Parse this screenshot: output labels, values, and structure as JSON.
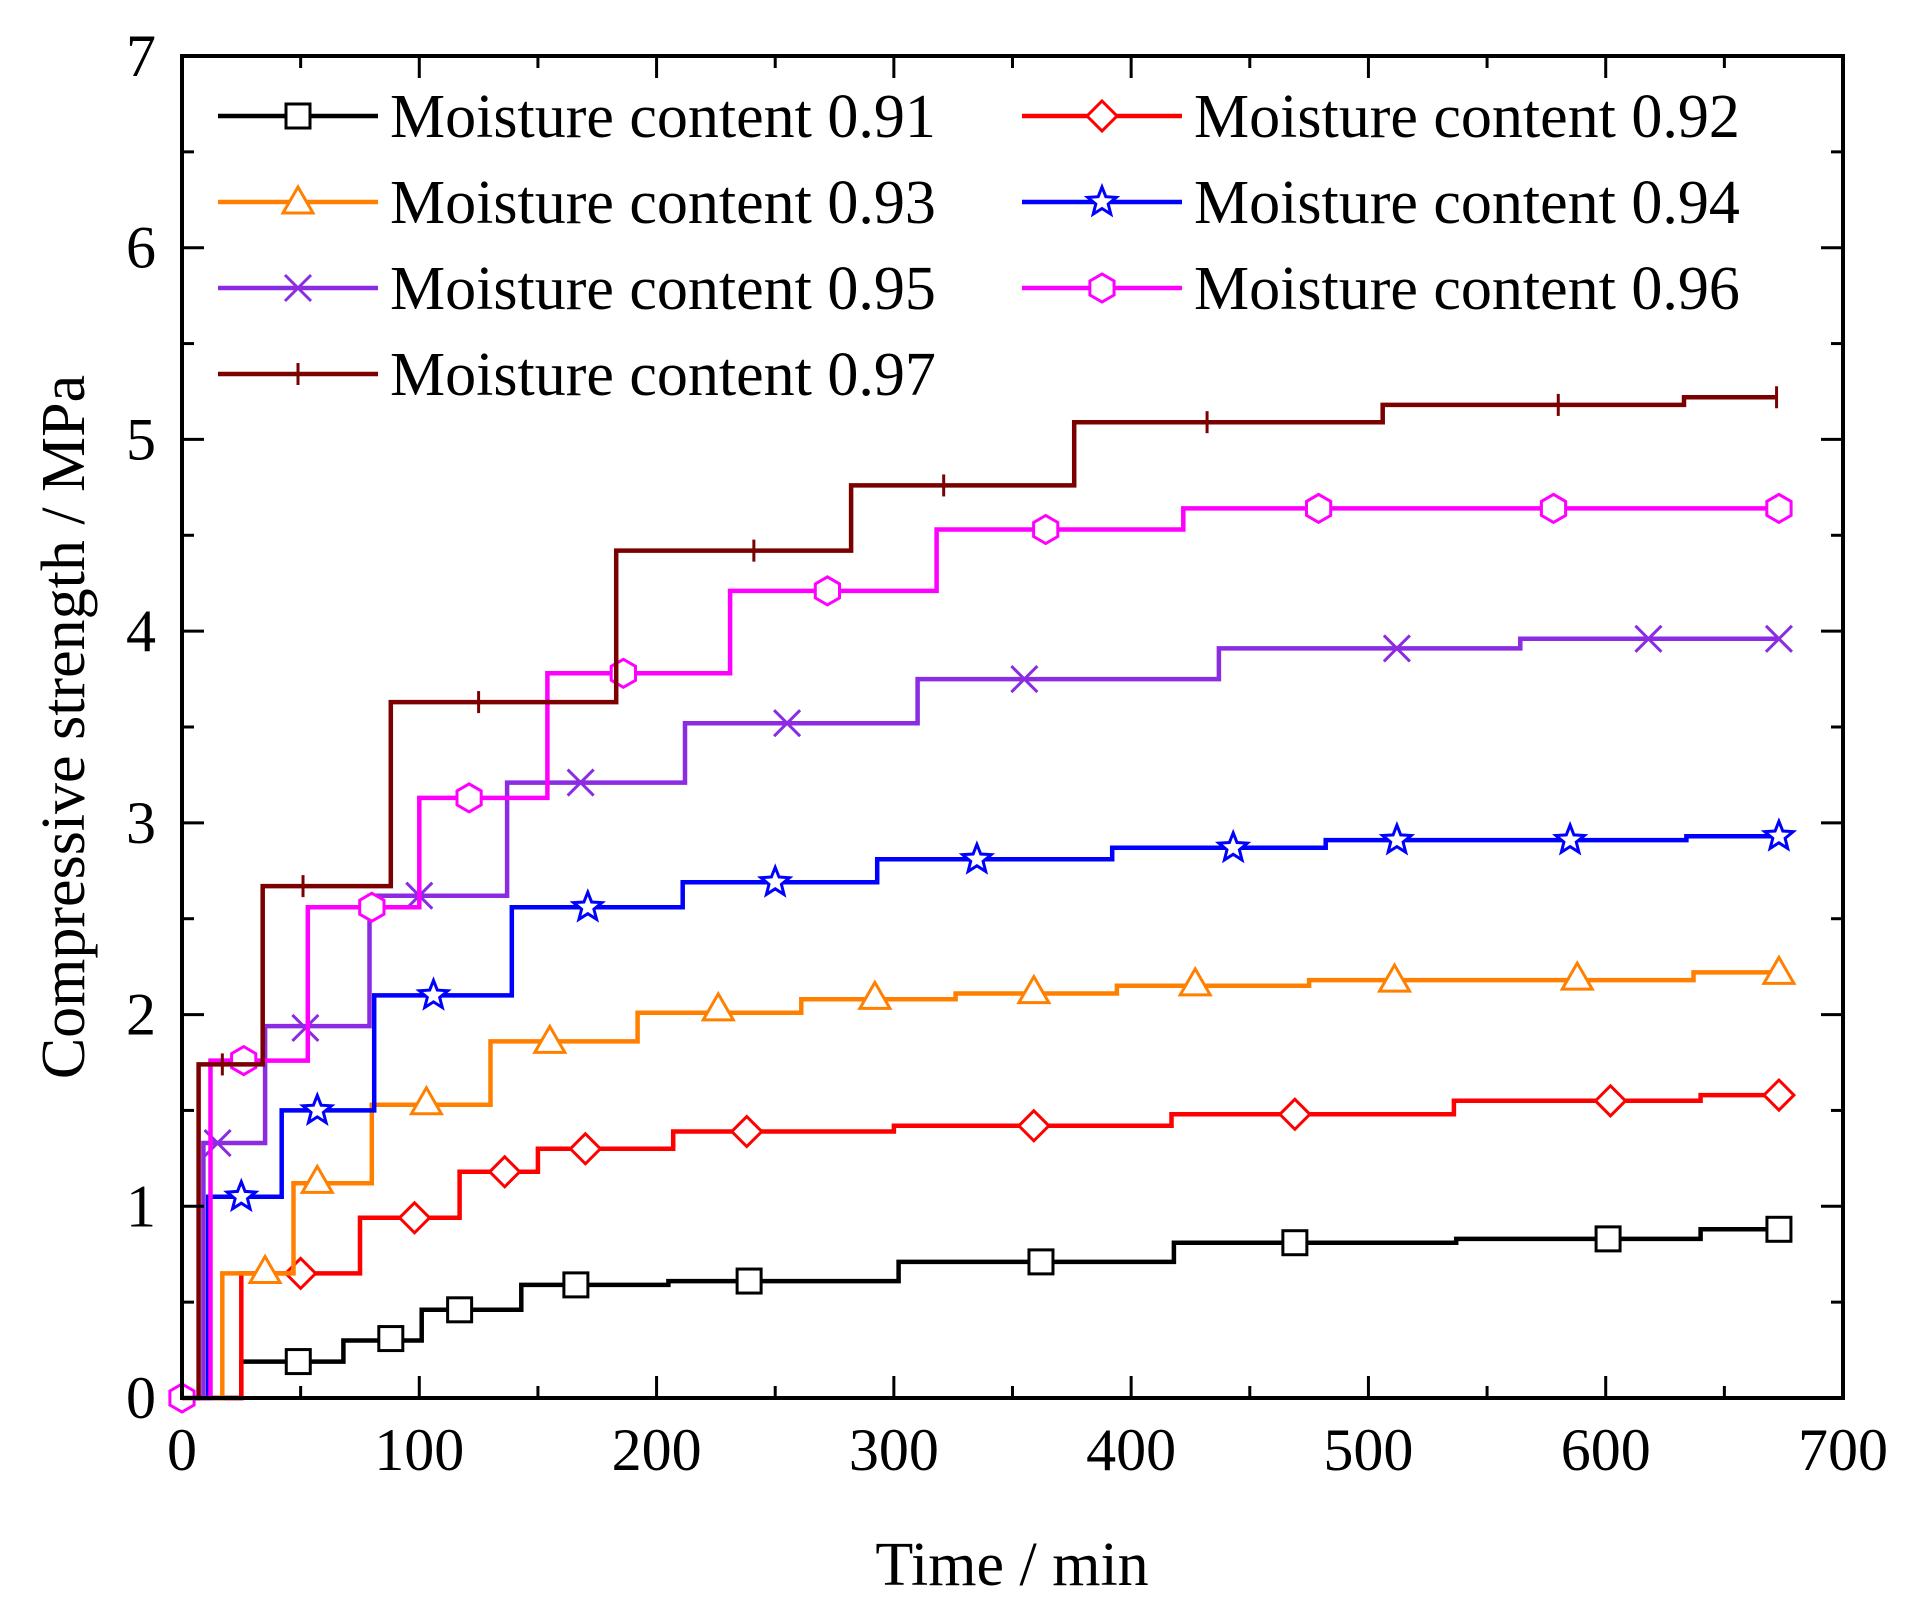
{
  "chart_data": {
    "type": "line",
    "step": true,
    "title": "",
    "xlabel": "Time / min",
    "ylabel": "Compressive strength / MPa",
    "xlim": [
      0,
      700
    ],
    "ylim": [
      0,
      7
    ],
    "xticks": [
      0,
      100,
      200,
      300,
      400,
      500,
      600,
      700
    ],
    "yticks": [
      0,
      1,
      2,
      3,
      4,
      5,
      6,
      7
    ],
    "legend_position": "top-left",
    "series": [
      {
        "name": "Moisture content 0.91",
        "color": "#000000",
        "marker": "square",
        "steps": [
          [
            0,
            0
          ],
          [
            23,
            0
          ],
          [
            25,
            0.19
          ],
          [
            67,
            0.19
          ],
          [
            68,
            0.3
          ],
          [
            98,
            0.3
          ],
          [
            101,
            0.46
          ],
          [
            141,
            0.46
          ],
          [
            143,
            0.59
          ],
          [
            200,
            0.59
          ],
          [
            205,
            0.61
          ],
          [
            300,
            0.61
          ],
          [
            302,
            0.71
          ],
          [
            416,
            0.71
          ],
          [
            418,
            0.81
          ],
          [
            535,
            0.81
          ],
          [
            537,
            0.83
          ],
          [
            638,
            0.83
          ],
          [
            640,
            0.88
          ],
          [
            673,
            0.88
          ]
        ],
        "markers": [
          [
            49,
            0.19
          ],
          [
            88,
            0.31
          ],
          [
            117,
            0.46
          ],
          [
            166,
            0.59
          ],
          [
            239,
            0.61
          ],
          [
            362,
            0.71
          ],
          [
            469,
            0.81
          ],
          [
            601,
            0.83
          ],
          [
            673,
            0.88
          ]
        ]
      },
      {
        "name": "Moisture content 0.92",
        "color": "#ff0000",
        "marker": "diamond",
        "steps": [
          [
            0,
            0
          ],
          [
            24,
            0
          ],
          [
            25,
            0.65
          ],
          [
            73,
            0.65
          ],
          [
            75,
            0.94
          ],
          [
            115,
            0.94
          ],
          [
            117,
            1.18
          ],
          [
            145,
            1.18
          ],
          [
            150,
            1.3
          ],
          [
            205,
            1.3
          ],
          [
            207,
            1.39
          ],
          [
            298,
            1.39
          ],
          [
            300,
            1.42
          ],
          [
            415,
            1.42
          ],
          [
            417,
            1.48
          ],
          [
            534,
            1.48
          ],
          [
            536,
            1.55
          ],
          [
            638,
            1.55
          ],
          [
            640,
            1.58
          ],
          [
            673,
            1.58
          ]
        ],
        "markers": [
          [
            50,
            0.65
          ],
          [
            98,
            0.94
          ],
          [
            136,
            1.18
          ],
          [
            170,
            1.3
          ],
          [
            238,
            1.39
          ],
          [
            359,
            1.42
          ],
          [
            469,
            1.48
          ],
          [
            602,
            1.55
          ],
          [
            673,
            1.58
          ]
        ]
      },
      {
        "name": "Moisture content 0.93",
        "color": "#ff8000",
        "marker": "triangle",
        "steps": [
          [
            0,
            0
          ],
          [
            15,
            0
          ],
          [
            17,
            0.65
          ],
          [
            45,
            0.65
          ],
          [
            47,
            1.12
          ],
          [
            79,
            1.12
          ],
          [
            80,
            1.53
          ],
          [
            128,
            1.53
          ],
          [
            130,
            1.86
          ],
          [
            190,
            1.86
          ],
          [
            192,
            2.01
          ],
          [
            259,
            2.01
          ],
          [
            261,
            2.08
          ],
          [
            324,
            2.08
          ],
          [
            326,
            2.11
          ],
          [
            392,
            2.11
          ],
          [
            394,
            2.15
          ],
          [
            473,
            2.15
          ],
          [
            475,
            2.18
          ],
          [
            635,
            2.18
          ],
          [
            637,
            2.22
          ],
          [
            673,
            2.22
          ]
        ],
        "markers": [
          [
            35,
            0.66
          ],
          [
            57,
            1.13
          ],
          [
            103,
            1.54
          ],
          [
            155,
            1.86
          ],
          [
            226,
            2.03
          ],
          [
            292,
            2.09
          ],
          [
            359,
            2.12
          ],
          [
            427,
            2.16
          ],
          [
            511,
            2.18
          ],
          [
            588,
            2.19
          ],
          [
            673,
            2.22
          ]
        ]
      },
      {
        "name": "Moisture content 0.94",
        "color": "#0000ff",
        "marker": "star",
        "steps": [
          [
            0,
            0
          ],
          [
            10,
            0
          ],
          [
            11,
            1.05
          ],
          [
            41,
            1.05
          ],
          [
            42,
            1.5
          ],
          [
            80,
            1.5
          ],
          [
            81,
            2.1
          ],
          [
            138,
            2.1
          ],
          [
            139,
            2.56
          ],
          [
            210,
            2.56
          ],
          [
            211,
            2.69
          ],
          [
            292,
            2.69
          ],
          [
            293,
            2.81
          ],
          [
            390,
            2.81
          ],
          [
            392,
            2.87
          ],
          [
            480,
            2.87
          ],
          [
            482,
            2.91
          ],
          [
            632,
            2.91
          ],
          [
            634,
            2.93
          ],
          [
            673,
            2.93
          ]
        ],
        "markers": [
          [
            25,
            1.05
          ],
          [
            57,
            1.5
          ],
          [
            106,
            2.1
          ],
          [
            171,
            2.56
          ],
          [
            250,
            2.69
          ],
          [
            335,
            2.81
          ],
          [
            443,
            2.87
          ],
          [
            512,
            2.91
          ],
          [
            585,
            2.91
          ],
          [
            673,
            2.93
          ]
        ]
      },
      {
        "name": "Moisture content 0.95",
        "color": "#8b2be2",
        "marker": "x",
        "steps": [
          [
            0,
            0
          ],
          [
            8,
            0
          ],
          [
            9,
            1.33
          ],
          [
            34,
            1.33
          ],
          [
            35,
            1.94
          ],
          [
            78,
            1.94
          ],
          [
            79,
            2.62
          ],
          [
            136,
            2.62
          ],
          [
            137,
            3.21
          ],
          [
            211,
            3.21
          ],
          [
            212,
            3.52
          ],
          [
            309,
            3.52
          ],
          [
            310,
            3.75
          ],
          [
            436,
            3.75
          ],
          [
            437,
            3.91
          ],
          [
            562,
            3.91
          ],
          [
            564,
            3.96
          ],
          [
            673,
            3.96
          ]
        ],
        "markers": [
          [
            15,
            1.33
          ],
          [
            52,
            1.93
          ],
          [
            100,
            2.62
          ],
          [
            168,
            3.21
          ],
          [
            255,
            3.52
          ],
          [
            355,
            3.75
          ],
          [
            512,
            3.91
          ],
          [
            618,
            3.96
          ],
          [
            673,
            3.96
          ]
        ]
      },
      {
        "name": "Moisture content 0.96",
        "color": "#ff00ff",
        "marker": "hexagon",
        "steps": [
          [
            0,
            0
          ],
          [
            11,
            0
          ],
          [
            12,
            1.76
          ],
          [
            51,
            1.76
          ],
          [
            53,
            2.56
          ],
          [
            99,
            2.56
          ],
          [
            100,
            3.13
          ],
          [
            153,
            3.13
          ],
          [
            154,
            3.78
          ],
          [
            230,
            3.78
          ],
          [
            231,
            4.21
          ],
          [
            317,
            4.21
          ],
          [
            318,
            4.53
          ],
          [
            420,
            4.53
          ],
          [
            422,
            4.64
          ],
          [
            673,
            4.64
          ]
        ],
        "markers": [
          [
            0,
            0
          ],
          [
            26,
            1.76
          ],
          [
            80,
            2.56
          ],
          [
            121,
            3.13
          ],
          [
            186,
            3.78
          ],
          [
            272,
            4.21
          ],
          [
            364,
            4.53
          ],
          [
            479,
            4.64
          ],
          [
            578,
            4.64
          ],
          [
            673,
            4.64
          ]
        ]
      },
      {
        "name": "Moisture content 0.97",
        "color": "#7b0000",
        "marker": "vbar",
        "steps": [
          [
            0,
            0
          ],
          [
            6,
            0
          ],
          [
            7,
            1.74
          ],
          [
            33,
            1.74
          ],
          [
            34,
            2.67
          ],
          [
            87,
            2.67
          ],
          [
            88,
            3.63
          ],
          [
            182,
            3.63
          ],
          [
            183,
            4.42
          ],
          [
            281,
            4.42
          ],
          [
            282,
            4.76
          ],
          [
            375,
            4.76
          ],
          [
            376,
            5.09
          ],
          [
            504,
            5.09
          ],
          [
            506,
            5.18
          ],
          [
            631,
            5.18
          ],
          [
            633,
            5.22
          ],
          [
            672,
            5.22
          ]
        ],
        "markers": [
          [
            17,
            1.74
          ],
          [
            51,
            2.67
          ],
          [
            125,
            3.63
          ],
          [
            241,
            4.42
          ],
          [
            321,
            4.76
          ],
          [
            432,
            5.09
          ],
          [
            580,
            5.18
          ],
          [
            672,
            5.22
          ]
        ]
      }
    ]
  }
}
